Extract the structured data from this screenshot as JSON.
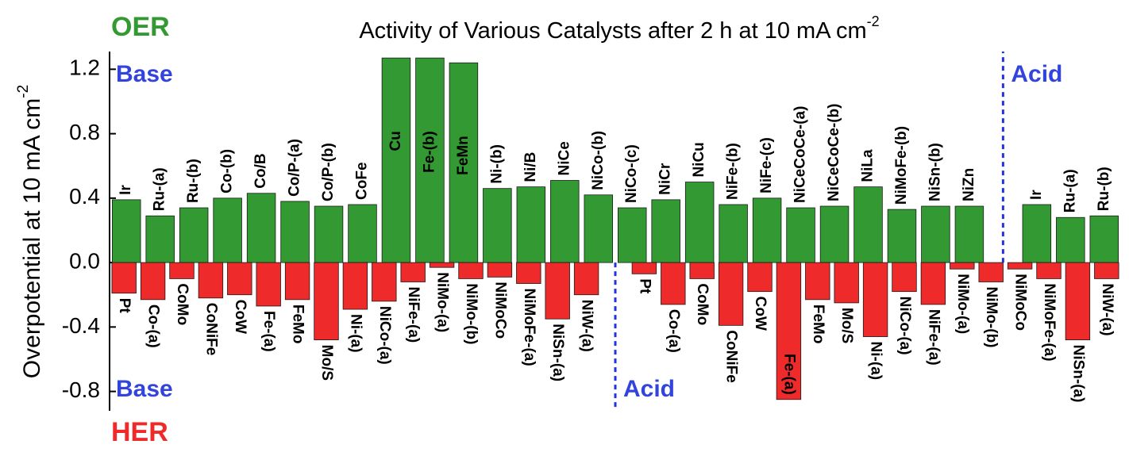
{
  "chart_data": {
    "type": "bar",
    "title": "Activity of Various Catalysts after 2 h at 10 mA cm",
    "title_sup": "-2",
    "y_label": "Overpotential at 10 mA cm",
    "y_label_sup": "-2",
    "ylim": [
      -0.92,
      1.31
    ],
    "yticks": [
      -0.8,
      -0.4,
      {
        "value": 0,
        "label": "0.0"
      },
      0.4,
      0.8,
      1.2
    ],
    "series": [
      {
        "name": "OER",
        "color": "#339a33",
        "groups": [
          {
            "name": "Base",
            "categories": [
              "Ir",
              "Ru-(a)",
              "Ru-(b)",
              "Co-(b)",
              "Co/B",
              "Co/P-(a)",
              "Co/P-(b)",
              "CoFe",
              "Cu",
              "Fe-(b)",
              "FeMn",
              "Ni-(b)",
              "Ni/B",
              "NiCe",
              "NiCo-(b)",
              "NiCo-(c)",
              "NiCr",
              "NiCu",
              "NiFe-(b)",
              "NiFe-(c)",
              "NiCeCoCe-(a)",
              "NiCeCoCe-(b)",
              "NiLa",
              "NiMoFe-(b)",
              "NiSn-(b)",
              "NiZn"
            ],
            "values": [
              0.39,
              0.29,
              0.34,
              0.4,
              0.43,
              0.38,
              0.35,
              0.36,
              1.27,
              1.27,
              1.24,
              0.46,
              0.47,
              0.51,
              0.42,
              0.34,
              0.39,
              0.5,
              0.36,
              0.4,
              0.34,
              0.35,
              0.47,
              0.33,
              0.35,
              0.35
            ]
          },
          {
            "name": "Acid",
            "categories": [
              "Ir",
              "Ru-(a)",
              "Ru-(b)"
            ],
            "values": [
              0.36,
              0.28,
              0.29
            ]
          }
        ]
      },
      {
        "name": "HER",
        "color": "#ee2a2a",
        "groups": [
          {
            "name": "Base",
            "categories": [
              "Pt",
              "Co-(a)",
              "CoMo",
              "CoNiFe",
              "CoW",
              "Fe-(a)",
              "FeMo",
              "Mo/S",
              "Ni-(a)",
              "NiCo-(a)",
              "NiFe-(a)",
              "NiMo-(a)",
              "NiMo-(b)",
              "NiMoCo",
              "NiMoFe-(a)",
              "NiSn-(a)",
              "NiW-(a)"
            ],
            "values": [
              -0.19,
              -0.23,
              -0.1,
              -0.22,
              -0.2,
              -0.27,
              -0.23,
              -0.48,
              -0.29,
              -0.24,
              -0.12,
              -0.03,
              -0.1,
              -0.09,
              -0.13,
              -0.35,
              -0.2
            ]
          },
          {
            "name": "Acid",
            "categories": [
              "Pt",
              "Co-(a)",
              "CoMo",
              "CoNiFe",
              "CoW",
              "Fe-(a)",
              "FeMo",
              "Mo/S",
              "Ni-(a)",
              "NiCo-(a)",
              "NiFe-(a)",
              "NiMo-(a)",
              "NiMo-(b)",
              "NiMoCo",
              "NiMoFe-(a)",
              "NiSn-(a)",
              "NiW-(a)"
            ],
            "values": [
              -0.07,
              -0.26,
              -0.1,
              -0.39,
              -0.18,
              -0.85,
              -0.23,
              -0.25,
              -0.46,
              -0.18,
              -0.26,
              -0.04,
              -0.12,
              -0.04,
              -0.1,
              -0.48,
              -0.1
            ]
          }
        ]
      }
    ]
  }
}
